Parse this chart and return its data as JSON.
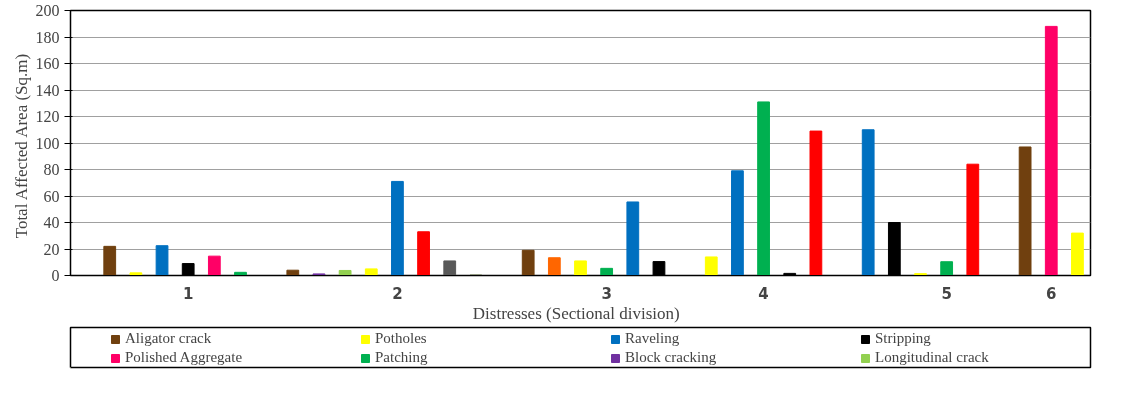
{
  "chart_data": {
    "type": "bar",
    "xlabel": "Distresses   (Sectional division)",
    "ylabel": "Total Affected Area  (Sq.m)",
    "categories": [
      null,
      null,
      null,
      null,
      "1",
      null,
      null,
      null,
      null,
      null,
      null,
      null,
      "2",
      null,
      null,
      null,
      null,
      null,
      null,
      null,
      "3",
      null,
      null,
      null,
      null,
      null,
      "4",
      null,
      null,
      null,
      null,
      null,
      null,
      "5",
      null,
      null,
      null,
      "6",
      null
    ],
    "series": [
      {
        "name": "Aligator crack",
        "color": "#70400f",
        "values": [
          null,
          22,
          null,
          null,
          null,
          null,
          null,
          null,
          4,
          null,
          null,
          null,
          null,
          null,
          null,
          null,
          null,
          19,
          null,
          null,
          null,
          null,
          null,
          null,
          null,
          null,
          null,
          null,
          null,
          null,
          null,
          null,
          null,
          null,
          null,
          null,
          97,
          null,
          null
        ]
      },
      {
        "name": "Potholes",
        "color": "#ffff00",
        "values": [
          null,
          null,
          2,
          null,
          null,
          null,
          null,
          null,
          null,
          null,
          null,
          5,
          null,
          null,
          null,
          null,
          null,
          null,
          null,
          11,
          null,
          null,
          null,
          null,
          14,
          null,
          null,
          null,
          null,
          null,
          null,
          null,
          1.4,
          null,
          null,
          null,
          null,
          null,
          32
        ]
      },
      {
        "name": "Raveling",
        "color": "#0070c0",
        "values": [
          null,
          null,
          null,
          22.5,
          null,
          null,
          null,
          null,
          null,
          null,
          null,
          null,
          71,
          null,
          null,
          null,
          null,
          null,
          null,
          null,
          null,
          55.5,
          null,
          null,
          null,
          79,
          null,
          null,
          null,
          null,
          110,
          null,
          null,
          null,
          null,
          null,
          null,
          null,
          null
        ]
      },
      {
        "name": "Stripping",
        "color": "#000000",
        "values": [
          null,
          null,
          null,
          null,
          9,
          null,
          null,
          null,
          null,
          null,
          null,
          null,
          null,
          null,
          null,
          null,
          null,
          null,
          null,
          null,
          null,
          null,
          10.5,
          null,
          null,
          null,
          null,
          1.6,
          null,
          null,
          null,
          40,
          null,
          null,
          null,
          null,
          null,
          null,
          null
        ]
      },
      {
        "name": "Polished Aggregate",
        "color": "#ff0066",
        "values": [
          null,
          null,
          null,
          null,
          null,
          14.6,
          null,
          null,
          null,
          null,
          null,
          null,
          null,
          null,
          null,
          null,
          null,
          null,
          null,
          null,
          null,
          null,
          null,
          null,
          null,
          null,
          null,
          null,
          null,
          null,
          null,
          null,
          null,
          null,
          null,
          null,
          null,
          188,
          null
        ]
      },
      {
        "name": "Patching",
        "color": "#00b050",
        "values": [
          null,
          null,
          null,
          null,
          null,
          null,
          2.4,
          null,
          null,
          null,
          null,
          null,
          null,
          null,
          null,
          null,
          null,
          null,
          null,
          null,
          5.4,
          null,
          null,
          null,
          null,
          null,
          131,
          null,
          null,
          null,
          null,
          null,
          null,
          10.4,
          null,
          null,
          null,
          null,
          null
        ]
      },
      {
        "name": "Block cracking",
        "color": "#7030a0",
        "values": [
          null,
          null,
          null,
          null,
          null,
          null,
          null,
          null,
          null,
          1.2,
          null,
          null,
          null,
          null,
          null,
          null,
          null,
          null,
          null,
          null,
          null,
          null,
          null,
          null,
          null,
          null,
          null,
          null,
          null,
          null,
          null,
          null,
          null,
          null,
          null,
          null,
          null,
          null,
          null
        ]
      },
      {
        "name": "Longitudinal crack",
        "color": "#92d050",
        "values": [
          null,
          null,
          null,
          null,
          null,
          null,
          null,
          null,
          null,
          null,
          3.8,
          null,
          null,
          null,
          null,
          null,
          null,
          null,
          null,
          null,
          null,
          null,
          null,
          null,
          null,
          null,
          null,
          null,
          null,
          null,
          null,
          null,
          null,
          null,
          null,
          null,
          null,
          null,
          null
        ]
      },
      {
        "color": "#ff0000",
        "values": [
          null,
          null,
          null,
          null,
          null,
          null,
          null,
          null,
          null,
          null,
          null,
          null,
          null,
          33,
          null,
          null,
          null,
          null,
          null,
          null,
          null,
          null,
          null,
          null,
          null,
          null,
          null,
          null,
          109,
          null,
          null,
          null,
          null,
          null,
          84,
          null,
          null,
          null,
          null
        ]
      },
      {
        "color": "#ff6600",
        "values": [
          null,
          null,
          null,
          null,
          null,
          null,
          null,
          null,
          null,
          null,
          null,
          null,
          null,
          null,
          null,
          null,
          null,
          null,
          13.4,
          null,
          null,
          null,
          null,
          null,
          null,
          null,
          null,
          null,
          null,
          null,
          null,
          null,
          null,
          null,
          null,
          null,
          null,
          null,
          null
        ]
      },
      {
        "color": "#595959",
        "values": [
          null,
          null,
          null,
          null,
          null,
          null,
          null,
          null,
          null,
          null,
          null,
          null,
          null,
          null,
          11,
          null,
          null,
          null,
          null,
          null,
          null,
          null,
          null,
          null,
          null,
          null,
          null,
          null,
          null,
          null,
          null,
          null,
          null,
          null,
          null,
          null,
          null,
          null,
          null
        ]
      },
      {
        "color": "#4f6228",
        "values": [
          null,
          null,
          null,
          null,
          null,
          null,
          null,
          null,
          null,
          null,
          null,
          null,
          null,
          null,
          null,
          0.3,
          null,
          null,
          null,
          null,
          null,
          null,
          null,
          null,
          null,
          null,
          null,
          null,
          null,
          null,
          null,
          null,
          null,
          null,
          null,
          null,
          null,
          null,
          null
        ]
      }
    ],
    "ylim": [
      0,
      200
    ],
    "yticks": [
      0,
      20,
      40,
      60,
      80,
      100,
      120,
      140,
      160,
      180,
      200
    ],
    "grid": "y",
    "legend": "bottom"
  }
}
